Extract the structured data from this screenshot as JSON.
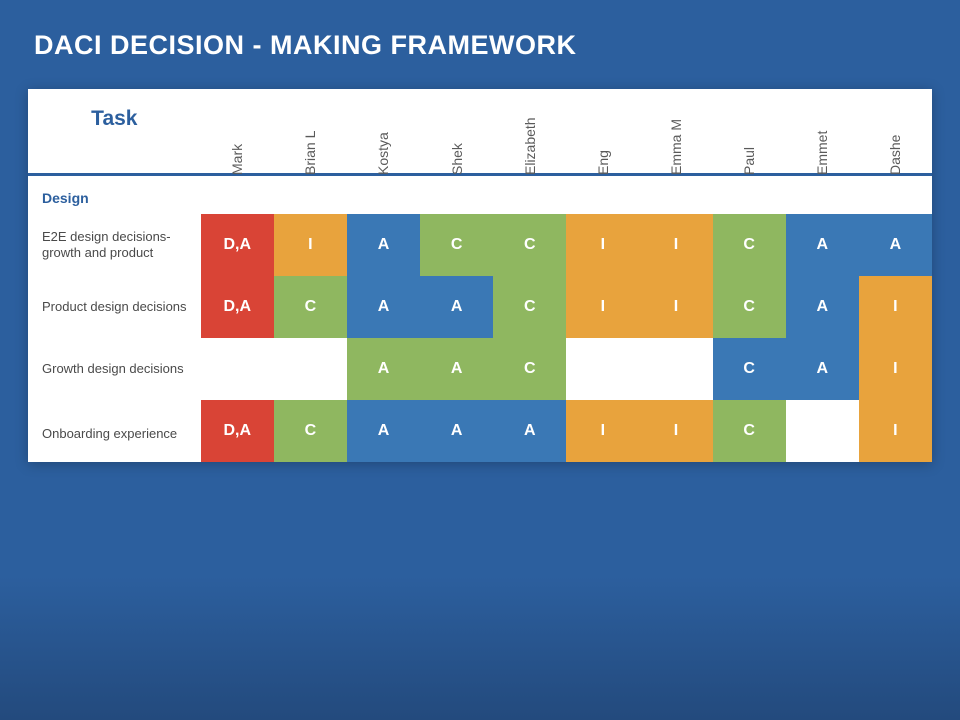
{
  "title": "DACI DECISION - MAKING FRAMEWORK",
  "task_header": "Task",
  "colors": {
    "DA": "#d94436",
    "I": "#e8a33d",
    "A": "#3a78b5",
    "C": "#8fb760",
    "A_green": "#8fb760",
    "C_blue": "#3a78b5",
    "bg": "#2c5f9e"
  },
  "people": [
    "Mark",
    "Brian L",
    "Kostya",
    "Shek",
    "Elizabeth",
    "Eng",
    "Emma M",
    "Paul",
    "Emmet",
    "Dashe"
  ],
  "section": "Design",
  "rows": [
    {
      "label": "E2E design decisions- growth and product",
      "cells": [
        {
          "t": "D,A",
          "c": "#d94436"
        },
        {
          "t": "I",
          "c": "#e8a33d"
        },
        {
          "t": "A",
          "c": "#3a78b5"
        },
        {
          "t": "C",
          "c": "#8fb760"
        },
        {
          "t": "C",
          "c": "#8fb760"
        },
        {
          "t": "I",
          "c": "#e8a33d"
        },
        {
          "t": "I",
          "c": "#e8a33d"
        },
        {
          "t": "C",
          "c": "#8fb760"
        },
        {
          "t": "A",
          "c": "#3a78b5"
        },
        {
          "t": "A",
          "c": "#3a78b5"
        }
      ]
    },
    {
      "label": "Product design decisions",
      "cells": [
        {
          "t": "D,A",
          "c": "#d94436"
        },
        {
          "t": "C",
          "c": "#8fb760"
        },
        {
          "t": "A",
          "c": "#3a78b5"
        },
        {
          "t": "A",
          "c": "#3a78b5"
        },
        {
          "t": "C",
          "c": "#8fb760"
        },
        {
          "t": "I",
          "c": "#e8a33d"
        },
        {
          "t": "I",
          "c": "#e8a33d"
        },
        {
          "t": "C",
          "c": "#8fb760"
        },
        {
          "t": "A",
          "c": "#3a78b5"
        },
        {
          "t": "I",
          "c": "#e8a33d"
        }
      ]
    },
    {
      "label": "Growth design decisions",
      "cells": [
        {
          "t": "",
          "c": ""
        },
        {
          "t": "",
          "c": ""
        },
        {
          "t": "A",
          "c": "#8fb760"
        },
        {
          "t": "A",
          "c": "#8fb760"
        },
        {
          "t": "C",
          "c": "#8fb760"
        },
        {
          "t": "",
          "c": ""
        },
        {
          "t": "",
          "c": ""
        },
        {
          "t": "C",
          "c": "#3a78b5"
        },
        {
          "t": "A",
          "c": "#3a78b5"
        },
        {
          "t": "I",
          "c": "#e8a33d"
        }
      ]
    },
    {
      "label": "Onboarding experience",
      "cells": [
        {
          "t": "D,A",
          "c": "#d94436"
        },
        {
          "t": "C",
          "c": "#8fb760"
        },
        {
          "t": "A",
          "c": "#3a78b5"
        },
        {
          "t": "A",
          "c": "#3a78b5"
        },
        {
          "t": "A",
          "c": "#3a78b5"
        },
        {
          "t": "I",
          "c": "#e8a33d"
        },
        {
          "t": "I",
          "c": "#e8a33d"
        },
        {
          "t": "C",
          "c": "#8fb760"
        },
        {
          "t": "",
          "c": ""
        },
        {
          "t": "I",
          "c": "#e8a33d"
        }
      ]
    }
  ]
}
